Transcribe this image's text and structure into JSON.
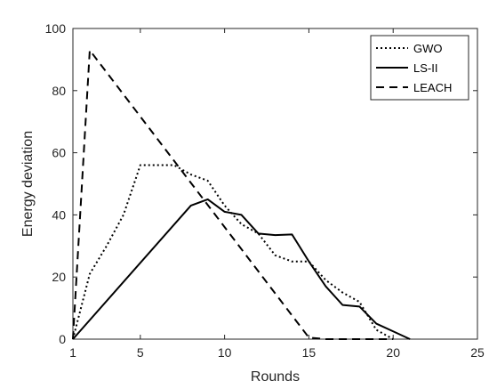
{
  "chart_data": {
    "type": "line",
    "xlabel": "Rounds",
    "ylabel": "Energy deviation",
    "xlim": [
      1,
      25
    ],
    "ylim": [
      0,
      100
    ],
    "xticks": [
      1,
      5,
      10,
      15,
      20,
      25
    ],
    "yticks": [
      0,
      20,
      40,
      60,
      80,
      100
    ],
    "grid": false,
    "legend_position": "top-right",
    "series": [
      {
        "name": "GWO",
        "style": "dotted",
        "color": "#000000",
        "x": [
          1,
          2,
          3,
          4,
          5,
          6,
          7,
          8,
          9,
          10,
          11,
          12,
          13,
          14,
          15,
          16,
          17,
          18,
          19,
          20
        ],
        "y": [
          0,
          21,
          30,
          40,
          56,
          56,
          56,
          53,
          51,
          43,
          37,
          34,
          27,
          25,
          25,
          19,
          15,
          12,
          3,
          0
        ]
      },
      {
        "name": "LS-II",
        "style": "solid",
        "color": "#000000",
        "x": [
          1,
          8,
          9,
          10,
          11,
          12,
          13,
          14,
          15,
          16,
          17,
          18,
          19,
          20,
          21
        ],
        "y": [
          0,
          43,
          45,
          41,
          40,
          34,
          33.5,
          33.7,
          25,
          17,
          11,
          10.5,
          5,
          2.5,
          0
        ]
      },
      {
        "name": "LEACH",
        "style": "dashed",
        "color": "#000000",
        "x": [
          1,
          2,
          15,
          16,
          20
        ],
        "y": [
          0,
          93,
          0.5,
          0,
          0
        ]
      }
    ]
  }
}
